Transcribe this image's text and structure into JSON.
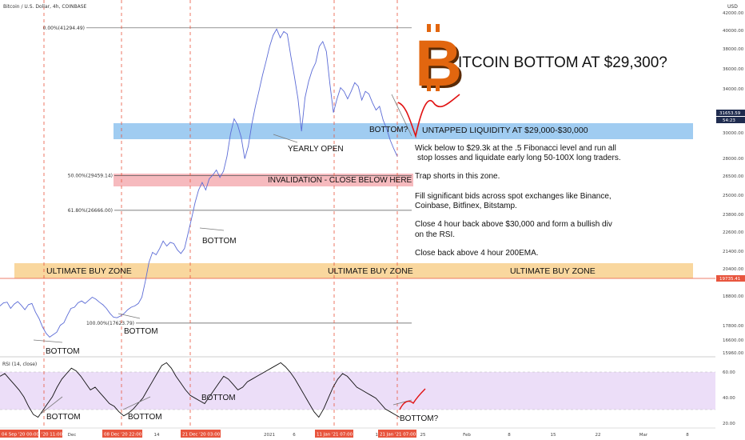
{
  "header": {
    "symbol_title": "Bitcoin / U.S. Dollar, 4h, COINBASE",
    "currency": "USD"
  },
  "colors": {
    "price_line": "#5b6bd6",
    "rsi_line": "#111111",
    "buy_zone": "#f7c97e",
    "liquidity_zone": "#8fc3ee",
    "invalidation_zone": "#f3a3a8",
    "rsi_band": "#e9d8f7",
    "vline": "#e8553e",
    "bitcoin_orange": "#e2660f",
    "projection": "#e11212"
  },
  "chart_data": [
    {
      "type": "line",
      "series": [
        {
          "values": [
            19000,
            19250,
            19300,
            18800,
            19150,
            19350,
            19050,
            18700,
            19100,
            19200,
            18500,
            18000,
            17300,
            16800,
            16500,
            16700,
            16900,
            17450,
            17650,
            18250,
            18800,
            18900,
            19250,
            19400,
            19200,
            19450,
            19700,
            19550,
            19300,
            19100,
            18800,
            18400,
            18100,
            18050,
            18200,
            18400,
            18700,
            18900,
            19000,
            19200,
            19700,
            21000,
            22500,
            23300,
            23100,
            23600,
            24200,
            23800,
            24100,
            24000,
            23500,
            23200,
            23600,
            24800,
            26000,
            27300,
            28300,
            28900,
            28300,
            29200,
            29500,
            29900,
            29300,
            29800,
            31000,
            32800,
            34000,
            33500,
            32500,
            30800,
            31800,
            33600,
            35000,
            36200,
            37500,
            38600,
            39800,
            40700,
            41200,
            40500,
            41000,
            40800,
            39000,
            37400,
            35600,
            33000,
            35700,
            37000,
            37900,
            38500,
            39800,
            40200,
            39400,
            36800,
            34500,
            35600,
            36500,
            36200,
            35600,
            36200,
            36900,
            36600,
            35500,
            36200,
            36000,
            35300,
            34700,
            35000,
            33900,
            33200,
            32300,
            31600,
            31000
          ]
        }
      ],
      "ylim": [
        15500,
        42500
      ],
      "y_ticks": [
        "42000.00",
        "40000.00",
        "38000.00",
        "36000.00",
        "34000.00",
        "32000.00",
        "30000.00",
        "28000.00",
        "26500.00",
        "25000.00",
        "23800.00",
        "22600.00",
        "21400.00",
        "20400.00",
        "18800.00",
        "17800.00",
        "16600.00",
        "15960.00"
      ],
      "price_labels": [
        "31653.59",
        "54:23",
        "19735.41"
      ],
      "fibonacci": [
        {
          "label": "0.00%(41294.49)",
          "value": 41294.49
        },
        {
          "label": "50.00%(29459.14)",
          "value": 29459.14
        },
        {
          "label": "61.80%(26666.00)",
          "value": 26666.0
        },
        {
          "label": "100.00%(17623.79)",
          "value": 17623.79
        }
      ],
      "zones": [
        {
          "label": "UNTAPPED LIQUIDITY AT $29,000-$30,000",
          "from": 29000,
          "to": 30000
        },
        {
          "label": "INVALIDATION - CLOSE BELOW HERE",
          "from": 25700,
          "to": 26400
        },
        {
          "labels": [
            "ULTIMATE BUY ZONE",
            "ULTIMATE BUY ZONE",
            "ULTIMATE BUY ZONE"
          ],
          "from": 20050,
          "to": 20900
        }
      ],
      "annotations": [
        "BOTTOM?",
        "YEARLY OPEN",
        "BOTTOM",
        "BOTTOM",
        "BOTTOM"
      ]
    },
    {
      "type": "line",
      "title": "RSI (14, close)",
      "series": [
        {
          "values": [
            60,
            62,
            58,
            54,
            50,
            45,
            38,
            32,
            30,
            35,
            40,
            45,
            52,
            58,
            62,
            66,
            64,
            60,
            55,
            50,
            52,
            48,
            44,
            40,
            38,
            34,
            31,
            33,
            36,
            40,
            44,
            50,
            56,
            62,
            68,
            70,
            66,
            60,
            55,
            50,
            46,
            44,
            42,
            40,
            45,
            50,
            55,
            60,
            58,
            54,
            50,
            52,
            56,
            58,
            60,
            62,
            64,
            66,
            68,
            70,
            67,
            63,
            58,
            52,
            46,
            40,
            34,
            30,
            36,
            44,
            52,
            58,
            62,
            60,
            56,
            52,
            50,
            48,
            46,
            44,
            40,
            36,
            34,
            32,
            30
          ]
        }
      ],
      "ylim": [
        25,
        72
      ],
      "y_ticks": [
        "60.00",
        "40.00",
        "20.00"
      ],
      "annotations": [
        "BOTTOM",
        "BOTTOM",
        "BOTTOM",
        "BOTTOM?"
      ]
    }
  ],
  "x_axis": {
    "ticks": [
      "Dec",
      "14",
      "2021",
      "6",
      "18",
      "25",
      "Feb",
      "8",
      "15",
      "22",
      "Mar",
      "8"
    ],
    "date_badges": [
      "04 Sep '20  00:00",
      "'20  11:00",
      "08 Dec '20  22:00",
      "21 Dec '20  03:00",
      "11 Jan '21  07:00",
      "21 Jan '21  07:00"
    ]
  },
  "headline": {
    "logo_letter": "B",
    "text": "ITCOIN BOTTOM AT $29,300?"
  },
  "notes": [
    "Wick below to $29.3k at the .5 Fibonacci level and run all",
    "stop losses and liquidate early long 50-100X long traders.",
    "Trap shorts in this zone.",
    "Fill significant bids across spot exchanges like Binance,",
    "Coinbase, Bitfinex, Bitstamp.",
    "Close 4 hour back above $30,000 and form a bullish div",
    "on the RSI.",
    "Close back above 4 hour 200EMA."
  ]
}
